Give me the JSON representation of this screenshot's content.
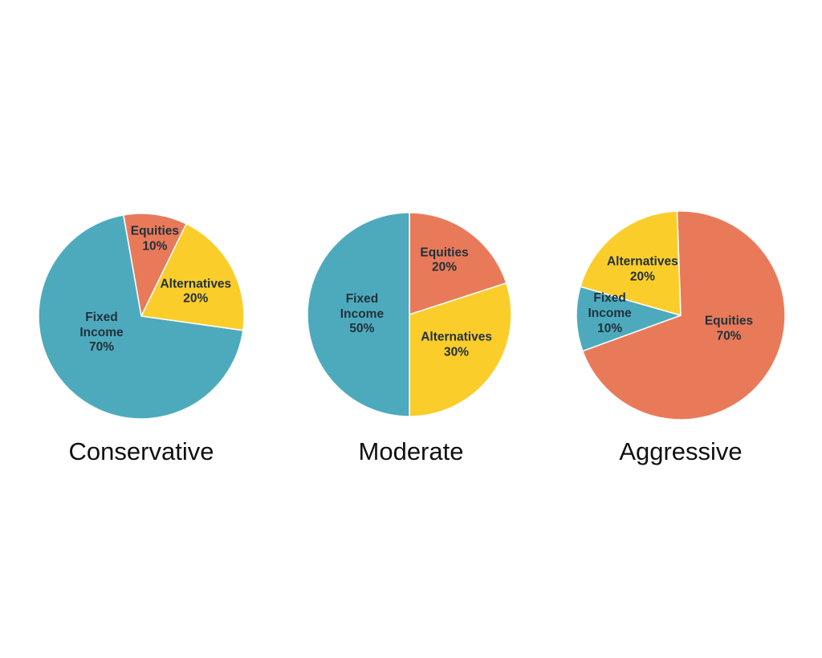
{
  "page": {
    "background": "#FFFFFF"
  },
  "palette": {
    "fixed_income": "#4DAABC",
    "equities": "#E87A5A",
    "alternatives": "#FACD2B",
    "slice_separator": "#FFFFFF",
    "slice_label_text": "#22313C",
    "title_text": "#101010"
  },
  "chart_data": [
    {
      "type": "pie",
      "title": "Conservative",
      "legend": "none",
      "start_angle_deg": -10,
      "radius_px": 128,
      "slices": [
        {
          "key": "equities",
          "label": "Equities",
          "value_pct": 10,
          "color": "#E87A5A",
          "label_lines": [
            "Equities",
            "10%"
          ],
          "label_angle_deg": 10,
          "label_r": 0.76
        },
        {
          "key": "alternatives",
          "label": "Alternatives",
          "value_pct": 20,
          "color": "#FACD2B",
          "label_lines": [
            "Alternatives",
            "20%"
          ],
          "label_angle_deg": 66,
          "label_r": 0.58
        },
        {
          "key": "fixed-income",
          "label": "Fixed Income",
          "value_pct": 70,
          "color": "#4DAABC",
          "label_lines": [
            "Fixed",
            "Income",
            "70%"
          ],
          "label_angle_deg": 247,
          "label_r": 0.42
        }
      ]
    },
    {
      "type": "pie",
      "title": "Moderate",
      "legend": "none",
      "start_angle_deg": 0,
      "radius_px": 127,
      "slices": [
        {
          "key": "equities",
          "label": "Equities",
          "value_pct": 20,
          "color": "#E87A5A",
          "label_lines": [
            "Equities",
            "20%"
          ],
          "label_angle_deg": 33,
          "label_r": 0.63
        },
        {
          "key": "alternatives",
          "label": "Alternatives",
          "value_pct": 30,
          "color": "#FACD2B",
          "label_lines": [
            "Alternatives",
            "30%"
          ],
          "label_angle_deg": 123,
          "label_r": 0.55
        },
        {
          "key": "fixed-income",
          "label": "Fixed Income",
          "value_pct": 50,
          "color": "#4DAABC",
          "label_lines": [
            "Fixed",
            "Income",
            "50%"
          ],
          "label_angle_deg": 270,
          "label_r": 0.465
        }
      ]
    },
    {
      "type": "pie",
      "title": "Aggressive",
      "legend": "none",
      "start_angle_deg": -2,
      "radius_px": 130,
      "slices": [
        {
          "key": "equities",
          "label": "Equities",
          "value_pct": 70,
          "color": "#E87A5A",
          "label_lines": [
            "Equities",
            "70%"
          ],
          "label_angle_deg": 106,
          "label_r": 0.48
        },
        {
          "key": "fixed-income",
          "label": "Fixed Income",
          "value_pct": 10,
          "color": "#4DAABC",
          "label_lines": [
            "Fixed",
            "Income",
            "10%"
          ],
          "label_angle_deg": 271,
          "label_r": 0.68
        },
        {
          "key": "alternatives",
          "label": "Alternatives",
          "value_pct": 20,
          "color": "#FACD2B",
          "label_lines": [
            "Alternatives",
            "20%"
          ],
          "label_angle_deg": 320,
          "label_r": 0.57
        }
      ]
    }
  ]
}
